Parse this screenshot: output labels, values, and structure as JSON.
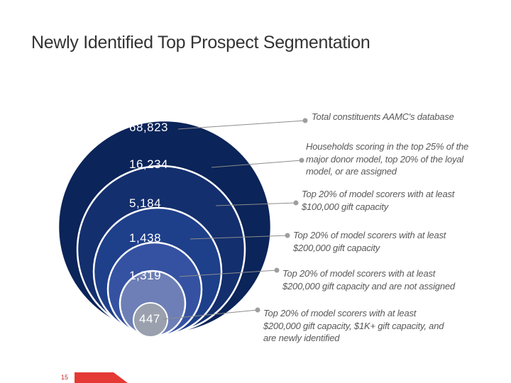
{
  "title": "Newly Identified Top Prospect Segmentation",
  "page_number": "15",
  "colors": {
    "ring_1": "#0b2459",
    "ring_2": "#142f6e",
    "ring_3": "#1e3f8a",
    "ring_4": "#3552a2",
    "ring_5": "#6d7fb6",
    "ring_6": "#9aa0ad",
    "connector": "#8c8c8c",
    "footer_accent": "#e53935"
  },
  "segments": [
    {
      "count": "68,823",
      "description": [
        "Total constituents AAMC's database"
      ]
    },
    {
      "count": "16,234",
      "description": [
        "Households scoring in the top 25% of the",
        "major donor model, top 20% of the loyal",
        "model, or are assigned"
      ]
    },
    {
      "count": "5,184",
      "description": [
        "Top 20% of model scorers with at least",
        "$100,000 gift capacity"
      ]
    },
    {
      "count": "1,438",
      "description": [
        "Top 20% of model scorers with at least",
        "$200,000 gift capacity"
      ]
    },
    {
      "count": "1,319",
      "description": [
        "Top 20% of model scorers with at least",
        "$200,000 gift capacity and are not assigned"
      ]
    },
    {
      "count": "447",
      "description": [
        "Top 20% of model scorers with at least",
        "$200,000 gift capacity, $1K+ gift capacity, and",
        "are newly identified"
      ]
    }
  ]
}
